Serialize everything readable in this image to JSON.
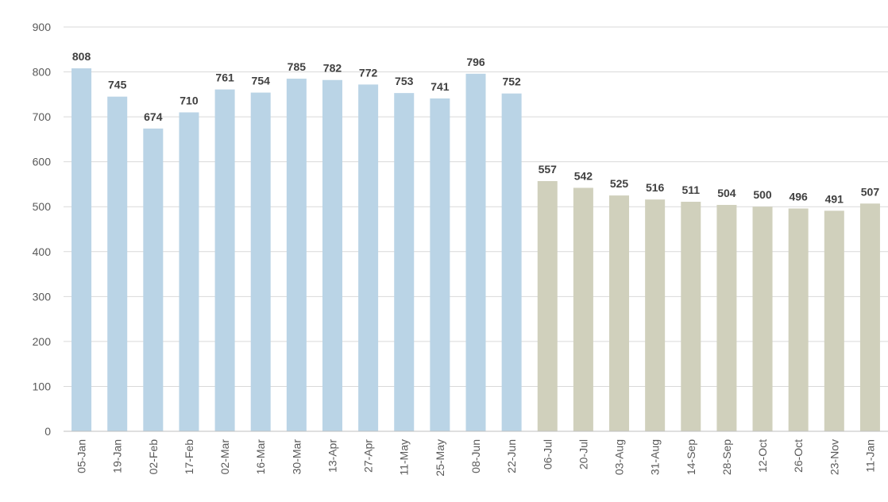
{
  "chart_data": {
    "type": "bar",
    "title": "",
    "xlabel": "",
    "ylabel": "",
    "categories": [
      "05-Jan",
      "19-Jan",
      "02-Feb",
      "17-Feb",
      "02-Mar",
      "16-Mar",
      "30-Mar",
      "13-Apr",
      "27-Apr",
      "11-May",
      "25-May",
      "08-Jun",
      "22-Jun",
      "06-Jul",
      "20-Jul",
      "03-Aug",
      "31-Aug",
      "14-Sep",
      "28-Sep",
      "12-Oct",
      "26-Oct",
      "23-Nov",
      "11-Jan"
    ],
    "values": [
      808,
      745,
      674,
      710,
      761,
      754,
      785,
      782,
      772,
      753,
      741,
      796,
      752,
      557,
      542,
      525,
      516,
      511,
      504,
      500,
      496,
      491,
      507
    ],
    "bar_colors": [
      "#bad4e6",
      "#bad4e6",
      "#bad4e6",
      "#bad4e6",
      "#bad4e6",
      "#bad4e6",
      "#bad4e6",
      "#bad4e6",
      "#bad4e6",
      "#bad4e6",
      "#bad4e6",
      "#bad4e6",
      "#bad4e6",
      "#d0d0bc",
      "#d0d0bc",
      "#d0d0bc",
      "#d0d0bc",
      "#d0d0bc",
      "#d0d0bc",
      "#d0d0bc",
      "#d0d0bc",
      "#d0d0bc",
      "#d0d0bc"
    ],
    "ylim": [
      0,
      900
    ],
    "y_ticks": [
      "0",
      "100",
      "200",
      "300",
      "400",
      "500",
      "600",
      "700",
      "800",
      "900"
    ],
    "grid": true,
    "legend": "none",
    "data_labels": true,
    "x_label_rotation": "vertical"
  }
}
